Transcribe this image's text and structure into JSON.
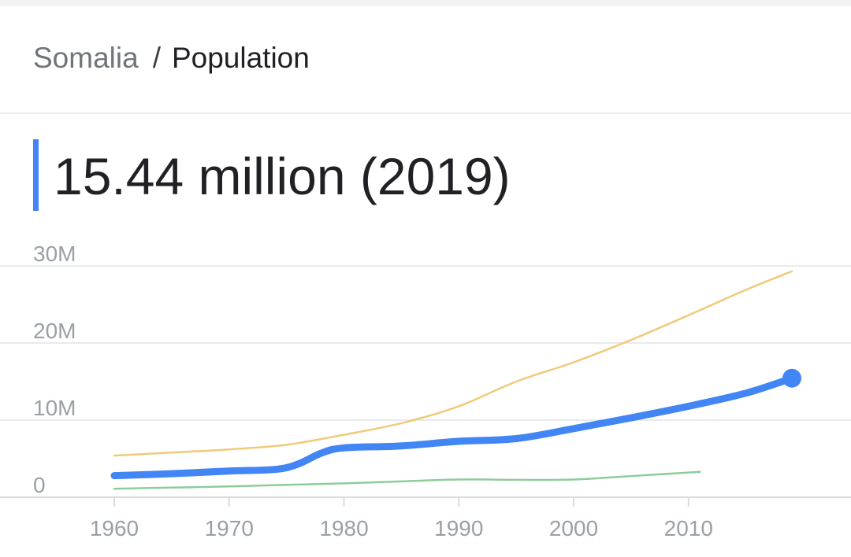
{
  "breadcrumb": {
    "parent": "Somalia",
    "separator": "/",
    "current": "Population"
  },
  "headline": {
    "value": "15.44 million (2019)",
    "accent_color": "#4285f4"
  },
  "chart_data": {
    "type": "line",
    "title": "",
    "xlabel": "",
    "ylabel": "",
    "xlim": [
      1960,
      2019
    ],
    "ylim": [
      0,
      30000000
    ],
    "grid": true,
    "x_ticks": [
      1960,
      1970,
      1980,
      1990,
      2000,
      2010
    ],
    "x_tick_labels": [
      "1960",
      "1970",
      "1980",
      "1990",
      "2000",
      "2010"
    ],
    "y_ticks": [
      0,
      10000000,
      20000000,
      30000000
    ],
    "y_tick_labels": [
      "0",
      "10M",
      "20M",
      "30M"
    ],
    "series": [
      {
        "role": "comparison",
        "color": "#f0ca7a",
        "points": [
          [
            1960,
            5400000
          ],
          [
            1965,
            5800000
          ],
          [
            1970,
            6200000
          ],
          [
            1975,
            6800000
          ],
          [
            1980,
            8100000
          ],
          [
            1985,
            9600000
          ],
          [
            1990,
            11800000
          ],
          [
            1995,
            15000000
          ],
          [
            2000,
            17500000
          ],
          [
            2005,
            20400000
          ],
          [
            2010,
            23600000
          ],
          [
            2015,
            26900000
          ],
          [
            2019,
            29300000
          ]
        ]
      },
      {
        "role": "comparison",
        "color": "#8ecc9a",
        "points": [
          [
            1960,
            1100000
          ],
          [
            1965,
            1250000
          ],
          [
            1970,
            1400000
          ],
          [
            1975,
            1600000
          ],
          [
            1980,
            1800000
          ],
          [
            1985,
            2050000
          ],
          [
            1990,
            2300000
          ],
          [
            1995,
            2250000
          ],
          [
            2000,
            2300000
          ],
          [
            2005,
            2750000
          ],
          [
            2011,
            3300000
          ]
        ]
      },
      {
        "role": "primary",
        "color": "#4285f4",
        "points": [
          [
            1960,
            2800000
          ],
          [
            1965,
            3050000
          ],
          [
            1970,
            3400000
          ],
          [
            1974,
            3600000
          ],
          [
            1976,
            4300000
          ],
          [
            1978,
            5700000
          ],
          [
            1980,
            6400000
          ],
          [
            1985,
            6650000
          ],
          [
            1990,
            7250000
          ],
          [
            1995,
            7600000
          ],
          [
            2000,
            8900000
          ],
          [
            2005,
            10300000
          ],
          [
            2010,
            11800000
          ],
          [
            2015,
            13500000
          ],
          [
            2019,
            15440000
          ]
        ]
      }
    ]
  }
}
